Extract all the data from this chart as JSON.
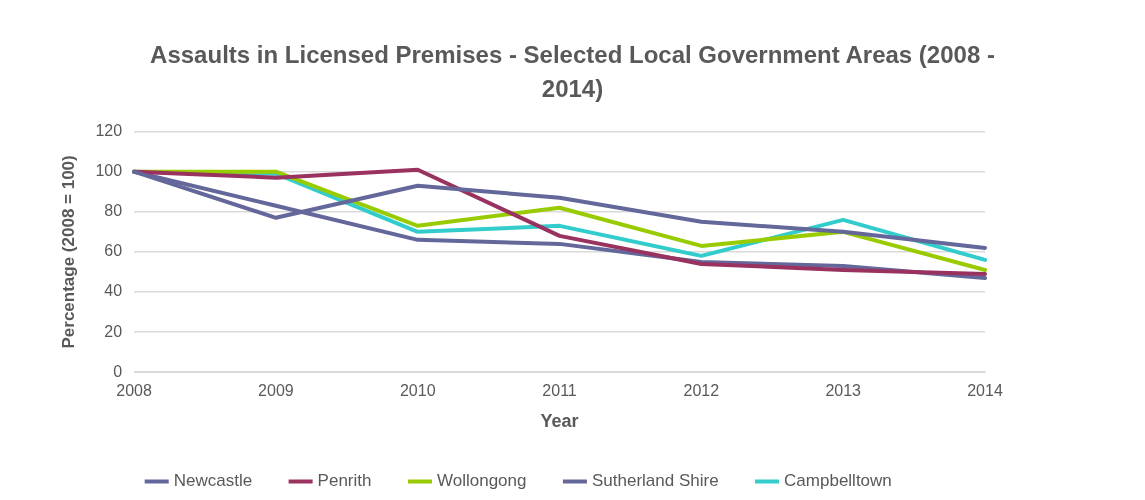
{
  "chart_data": {
    "type": "line",
    "title": "Assaults in Licensed Premises - Selected Local Government Areas (2008 - 2014)",
    "xlabel": "Year",
    "ylabel": "Percentage (2008 = 100)",
    "categories": [
      "2008",
      "2009",
      "2010",
      "2011",
      "2012",
      "2013",
      "2014"
    ],
    "series": [
      {
        "name": "Newcastle",
        "color": "#64679a",
        "values": [
          100,
          77,
          93,
          87,
          75,
          70,
          62
        ]
      },
      {
        "name": "Penrith",
        "color": "#99325e",
        "values": [
          100,
          97,
          101,
          68,
          54,
          51,
          49
        ]
      },
      {
        "name": "Wollongong",
        "color": "#99cc00",
        "values": [
          100,
          100,
          73,
          82,
          63,
          70,
          51
        ]
      },
      {
        "name": "Sutherland Shire",
        "color": "#64679a",
        "values": [
          100,
          83,
          66,
          64,
          55,
          53,
          47
        ]
      },
      {
        "name": "Campbelltown",
        "color": "#33cccc",
        "values": [
          100,
          99,
          70,
          73,
          58,
          76,
          56
        ]
      }
    ],
    "ylim": [
      0,
      120
    ],
    "yticks": [
      0,
      20,
      40,
      60,
      80,
      100,
      120
    ],
    "grid": "y",
    "legend": "bottom",
    "marker": "none",
    "line_style": "solid"
  }
}
